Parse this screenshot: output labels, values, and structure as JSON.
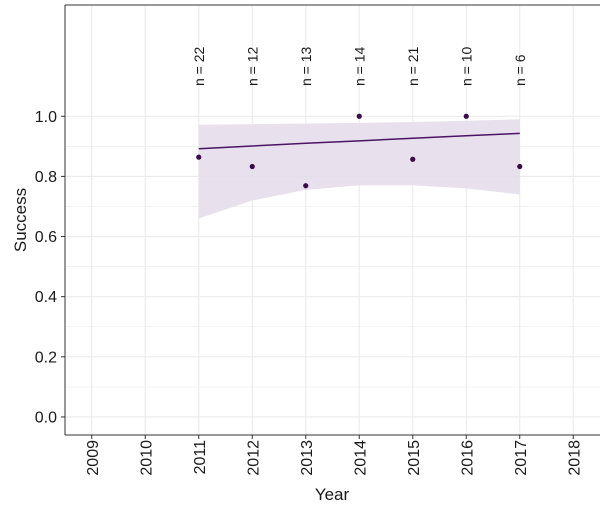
{
  "chart_data": {
    "type": "scatter",
    "xlabel": "Year",
    "ylabel": "Success",
    "xlim": [
      2008.5,
      2018.5
    ],
    "ylim": [
      -0.06,
      1.37
    ],
    "x_ticks": [
      2009,
      2010,
      2011,
      2012,
      2013,
      2014,
      2015,
      2016,
      2017,
      2018
    ],
    "y_ticks": [
      0.0,
      0.2,
      0.4,
      0.6,
      0.8,
      1.0
    ],
    "y_tick_labels": [
      "0.0",
      "0.2",
      "0.4",
      "0.6",
      "0.8",
      "1.0"
    ],
    "grid": true,
    "points": [
      {
        "x": 2011,
        "y": 0.864
      },
      {
        "x": 2012,
        "y": 0.833
      },
      {
        "x": 2013,
        "y": 0.769
      },
      {
        "x": 2014,
        "y": 1.0
      },
      {
        "x": 2015,
        "y": 0.857
      },
      {
        "x": 2016,
        "y": 1.0
      },
      {
        "x": 2017,
        "y": 0.833
      }
    ],
    "fit_line": [
      {
        "x": 2011,
        "y": 0.892
      },
      {
        "x": 2012,
        "y": 0.901
      },
      {
        "x": 2013,
        "y": 0.91
      },
      {
        "x": 2014,
        "y": 0.918
      },
      {
        "x": 2015,
        "y": 0.927
      },
      {
        "x": 2016,
        "y": 0.935
      },
      {
        "x": 2017,
        "y": 0.943
      }
    ],
    "confidence_band": [
      {
        "x": 2011,
        "lower": 0.66,
        "upper": 0.972
      },
      {
        "x": 2012,
        "lower": 0.72,
        "upper": 0.974
      },
      {
        "x": 2013,
        "lower": 0.755,
        "upper": 0.976
      },
      {
        "x": 2014,
        "lower": 0.77,
        "upper": 0.978
      },
      {
        "x": 2015,
        "lower": 0.77,
        "upper": 0.981
      },
      {
        "x": 2016,
        "lower": 0.76,
        "upper": 0.985
      },
      {
        "x": 2017,
        "lower": 0.74,
        "upper": 0.99
      }
    ],
    "annotations": [
      {
        "x": 2011,
        "text": "n = 22"
      },
      {
        "x": 2012,
        "text": "n = 12"
      },
      {
        "x": 2013,
        "text": "n = 13"
      },
      {
        "x": 2014,
        "text": "n = 14"
      },
      {
        "x": 2015,
        "text": "n = 21"
      },
      {
        "x": 2016,
        "text": "n = 10"
      },
      {
        "x": 2017,
        "text": "n = 6"
      }
    ],
    "colors": {
      "points": "#3a0a4a",
      "line": "#4a1463",
      "band": "#e6deeb",
      "grid": "#ebebeb",
      "axis": "#333333",
      "background": "#ffffff"
    }
  }
}
